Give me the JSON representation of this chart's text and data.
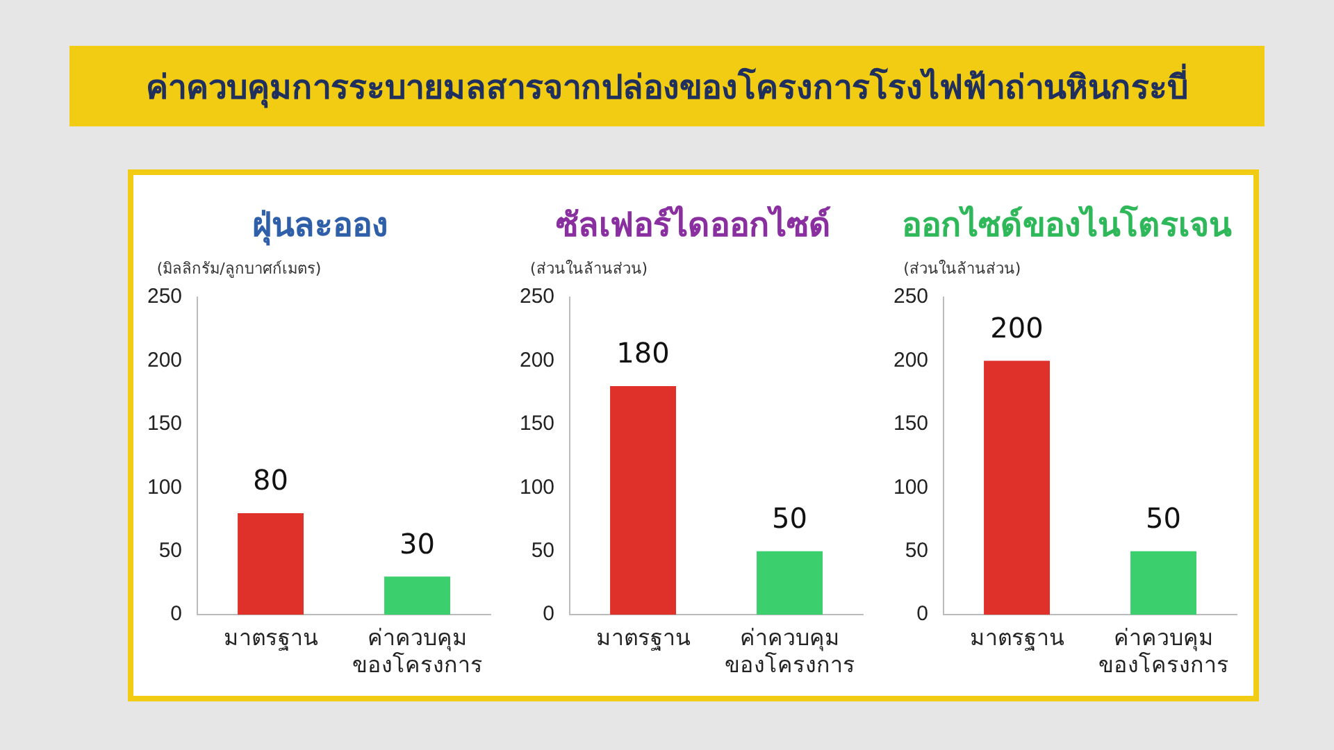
{
  "chart_data": [
    {
      "type": "other",
      "title": "ค่าควบคุมการระบายมลสารจากปล่องของโครงการโรงไฟฟ้าถ่านหินกระบี่"
    },
    {
      "type": "bar",
      "title": "ฝุ่นละออง",
      "ylabel": "(มิลลิกรัม/ลูกบาศก์เมตร)",
      "categories": [
        "มาตรฐาน",
        "ค่าควบคุม\nของโครงการ"
      ],
      "values": [
        80,
        30
      ],
      "colors": [
        "#e0302a",
        "#3ccf6e"
      ],
      "ylim": [
        0,
        250
      ],
      "yticks": [
        0,
        50,
        100,
        150,
        200,
        250
      ],
      "data_labels": true
    },
    {
      "type": "bar",
      "title": "ซัลเฟอร์ไดออกไซด์",
      "ylabel": "(ส่วนในล้านส่วน)",
      "categories": [
        "มาตรฐาน",
        "ค่าควบคุม\nของโครงการ"
      ],
      "values": [
        180,
        50
      ],
      "colors": [
        "#e0302a",
        "#3ccf6e"
      ],
      "ylim": [
        0,
        250
      ],
      "yticks": [
        0,
        50,
        100,
        150,
        200,
        250
      ],
      "data_labels": true
    },
    {
      "type": "bar",
      "title": "ออกไซด์ของไนโตรเจน",
      "ylabel": "(ส่วนในล้านส่วน)",
      "categories": [
        "มาตรฐาน",
        "ค่าควบคุม\nของโครงการ"
      ],
      "values": [
        200,
        50
      ],
      "colors": [
        "#e0302a",
        "#3ccf6e"
      ],
      "ylim": [
        0,
        250
      ],
      "yticks": [
        0,
        50,
        100,
        150,
        200,
        250
      ],
      "data_labels": true
    }
  ]
}
